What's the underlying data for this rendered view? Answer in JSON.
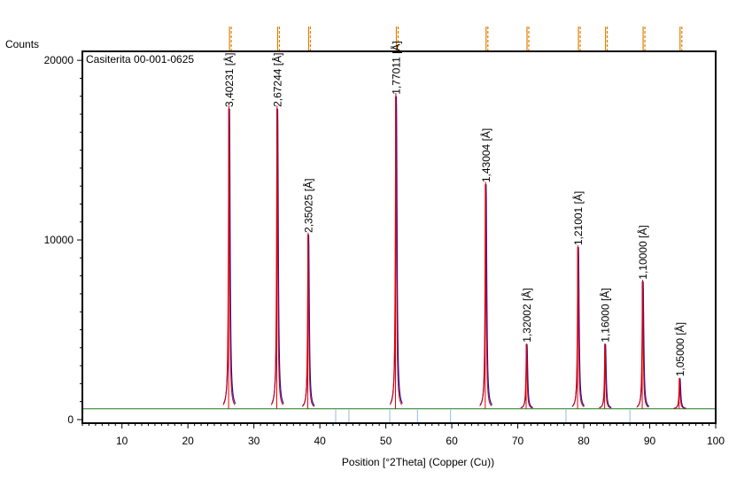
{
  "chart_data": {
    "type": "line",
    "ylabel": "Counts",
    "xlabel": "Position [°2Theta] (Copper (Cu))",
    "annotation_box": "Casiterita 00-001-0625",
    "xlim": [
      4,
      100
    ],
    "ylim": [
      -200,
      20500
    ],
    "xticks": [
      10,
      20,
      30,
      40,
      50,
      60,
      70,
      80,
      90,
      100
    ],
    "yticks": [
      0,
      10000,
      20000
    ],
    "baseline": 600,
    "colors": {
      "observed": "#1010c0",
      "fit": "#e00000",
      "background": "#1a7a1a",
      "reference": "#e08000",
      "tick_marks": "#a0c8e8"
    },
    "peaks": [
      {
        "x": 26.3,
        "height": 17300,
        "dspacing": "3,40231 [Å]"
      },
      {
        "x": 33.6,
        "height": 17300,
        "dspacing": "2,67244 [Å]"
      },
      {
        "x": 38.3,
        "height": 10300,
        "dspacing": "2,35025 [Å]"
      },
      {
        "x": 51.6,
        "height": 18000,
        "dspacing": "1,77011 [Å]"
      },
      {
        "x": 65.2,
        "height": 13100,
        "dspacing": "1,43004 [Å]"
      },
      {
        "x": 71.4,
        "height": 4200,
        "dspacing": "1,32002 [Å]"
      },
      {
        "x": 79.2,
        "height": 9600,
        "dspacing": "1,21001 [Å]"
      },
      {
        "x": 83.3,
        "height": 4200,
        "dspacing": "1,16000 [Å]"
      },
      {
        "x": 89.0,
        "height": 7700,
        "dspacing": "1,10000 [Å]"
      },
      {
        "x": 94.6,
        "height": 2300,
        "dspacing": "1,05000 [Å]"
      }
    ],
    "reference_lines": [
      26.3,
      33.6,
      38.3,
      51.6,
      65.2,
      71.4,
      79.2,
      83.3,
      89.0,
      94.6
    ],
    "minor_markers": [
      42.4,
      44.4,
      50.6,
      54.8,
      59.8,
      77.3,
      87.0
    ]
  }
}
